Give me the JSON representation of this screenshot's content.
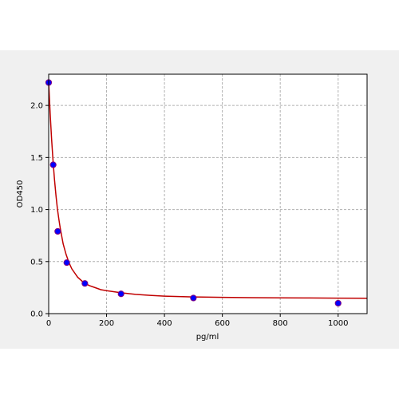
{
  "chart_data": {
    "type": "scatter",
    "title": "",
    "xlabel": "pg/ml",
    "ylabel": "OD450",
    "xlim": [
      0,
      1100
    ],
    "ylim": [
      0,
      2.3
    ],
    "xticks": [
      0,
      200,
      400,
      600,
      800,
      1000
    ],
    "xtick_labels": [
      "0",
      "200",
      "400",
      "600",
      "800",
      "1000"
    ],
    "yticks": [
      0.0,
      0.5,
      1.0,
      1.5,
      2.0
    ],
    "ytick_labels": [
      "0.0",
      "0.5",
      "1.0",
      "1.5",
      "2.0"
    ],
    "grid": true,
    "series": [
      {
        "kind": "points",
        "x": [
          0,
          15.6,
          31.25,
          62.5,
          125,
          250,
          500,
          1000
        ],
        "y": [
          2.22,
          1.43,
          0.79,
          0.49,
          0.29,
          0.19,
          0.15,
          0.1
        ],
        "color": "#0000ff",
        "edgecolor": "#800080"
      },
      {
        "kind": "fit-curve",
        "x": [
          0,
          5,
          10,
          15,
          20,
          25,
          30,
          35,
          40,
          50,
          60,
          70,
          80,
          90,
          100,
          120,
          140,
          160,
          180,
          200,
          250,
          300,
          350,
          400,
          500,
          600,
          700,
          800,
          900,
          1000,
          1100
        ],
        "y": [
          2.22,
          1.93,
          1.68,
          1.47,
          1.29,
          1.14,
          1.01,
          0.91,
          0.82,
          0.67,
          0.57,
          0.49,
          0.43,
          0.39,
          0.35,
          0.3,
          0.27,
          0.25,
          0.23,
          0.22,
          0.2,
          0.185,
          0.175,
          0.168,
          0.16,
          0.156,
          0.153,
          0.151,
          0.15,
          0.149,
          0.148
        ],
        "color": "#c00000"
      }
    ]
  }
}
